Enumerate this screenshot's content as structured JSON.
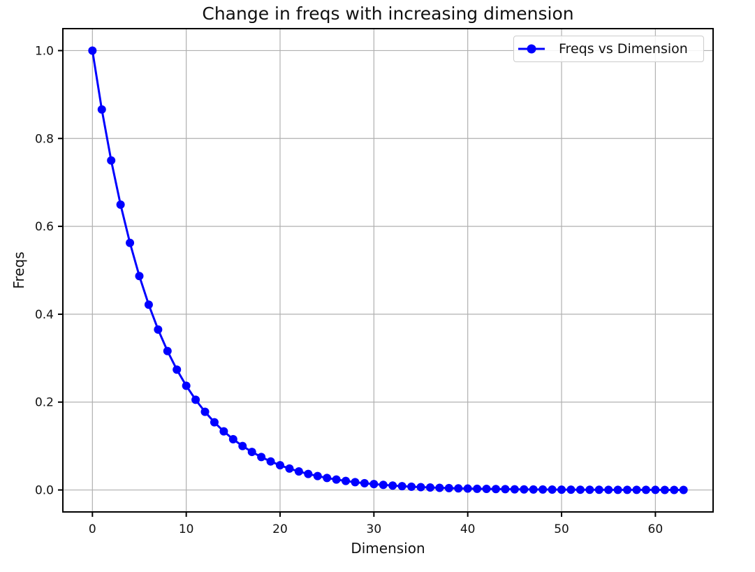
{
  "chart_data": {
    "type": "line",
    "title": "Change in freqs with increasing dimension",
    "xlabel": "Dimension",
    "ylabel": "Freqs",
    "grid": true,
    "legend_position": "upper right",
    "marker": "o",
    "colors": {
      "line": "#0000ff",
      "grid": "#b0b0b0",
      "spine": "#000000",
      "text": "#111111",
      "legend_border": "#cccccc"
    },
    "xlim": [
      -3.15,
      66.15
    ],
    "ylim": [
      -0.05,
      1.05
    ],
    "xticks": [
      0,
      10,
      20,
      30,
      40,
      50,
      60
    ],
    "xticklabels": [
      "0",
      "10",
      "20",
      "30",
      "40",
      "50",
      "60"
    ],
    "yticks": [
      0.0,
      0.2,
      0.4,
      0.6,
      0.8,
      1.0
    ],
    "yticklabels": [
      "0.0",
      "0.2",
      "0.4",
      "0.6",
      "0.8",
      "1.0"
    ],
    "series": [
      {
        "name": "Freqs vs Dimension",
        "x": [
          0,
          1,
          2,
          3,
          4,
          5,
          6,
          7,
          8,
          9,
          10,
          11,
          12,
          13,
          14,
          15,
          16,
          17,
          18,
          19,
          20,
          21,
          22,
          23,
          24,
          25,
          26,
          27,
          28,
          29,
          30,
          31,
          32,
          33,
          34,
          35,
          36,
          37,
          38,
          39,
          40,
          41,
          42,
          43,
          44,
          45,
          46,
          47,
          48,
          49,
          50,
          51,
          52,
          53,
          54,
          55,
          56,
          57,
          58,
          59,
          60,
          61,
          62,
          63
        ],
        "y": [
          1.0,
          0.86596,
          0.74989,
          0.64938,
          0.56234,
          0.48697,
          0.4217,
          0.36517,
          0.31623,
          0.27384,
          0.23714,
          0.20535,
          0.17783,
          0.15399,
          0.13335,
          0.11548,
          0.1,
          0.0866,
          0.07499,
          0.06494,
          0.05623,
          0.0487,
          0.04217,
          0.03652,
          0.03162,
          0.02738,
          0.02371,
          0.02054,
          0.01778,
          0.0154,
          0.01334,
          0.01155,
          0.01,
          0.00866,
          0.0075,
          0.00649,
          0.00562,
          0.00487,
          0.00422,
          0.00365,
          0.00316,
          0.00274,
          0.00237,
          0.00205,
          0.00178,
          0.00154,
          0.00133,
          0.00115,
          0.001,
          0.00087,
          0.00075,
          0.00065,
          0.00056,
          0.00049,
          0.00042,
          0.00037,
          0.00032,
          0.00027,
          0.00024,
          0.00021,
          0.00018,
          0.00015,
          0.00013,
          0.00012
        ]
      }
    ]
  }
}
